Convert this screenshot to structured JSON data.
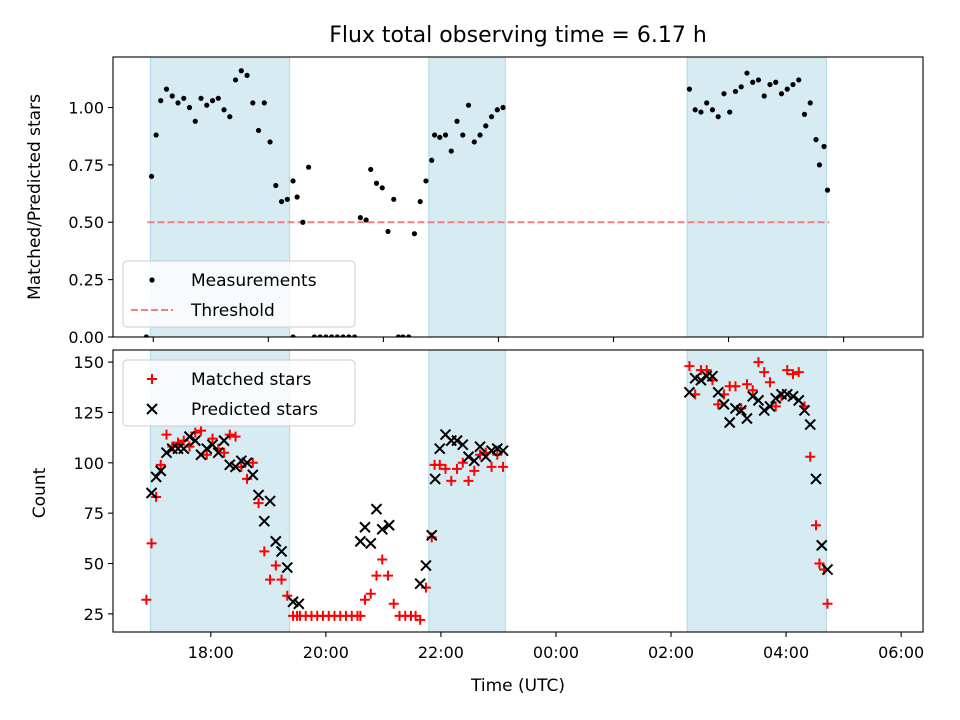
{
  "chart_data": [
    {
      "type": "scatter",
      "title": "Flux total observing time = 6.17 h",
      "ylabel": "Matched/Predicted stars",
      "xlabel": "",
      "x_unit": "hours since 17:00 UTC",
      "xlim": [
        -0.7,
        13.38
      ],
      "ylim": [
        0,
        1.22
      ],
      "yticks": [
        0.0,
        0.25,
        0.5,
        0.75,
        1.0
      ],
      "ytick_labels": [
        "0.00",
        "0.25",
        "0.50",
        "0.75",
        "1.00"
      ],
      "xticks": [
        0,
        2,
        4,
        6,
        8,
        10,
        12
      ],
      "shaded_intervals": [
        [
          -0.05,
          2.37
        ],
        [
          4.79,
          6.12
        ],
        [
          9.28,
          11.7
        ]
      ],
      "legend": {
        "position": "lower-left",
        "entries": [
          "Measurements",
          "Threshold"
        ]
      },
      "threshold": {
        "name": "Threshold",
        "value": 0.5,
        "x_range": [
          -0.1,
          11.75
        ],
        "color": "#f08080"
      },
      "series": [
        {
          "name": "Measurements",
          "color": "#000000",
          "x": [
            -0.12,
            -0.03,
            0.05,
            0.13,
            0.23,
            0.33,
            0.43,
            0.53,
            0.63,
            0.73,
            0.83,
            0.93,
            1.03,
            1.13,
            1.23,
            1.33,
            1.43,
            1.53,
            1.63,
            1.73,
            1.83,
            1.93,
            2.03,
            2.13,
            2.23,
            2.33,
            2.43,
            2.43,
            2.5,
            2.6,
            2.7,
            2.8,
            2.9,
            3.0,
            3.1,
            3.2,
            3.3,
            3.4,
            3.5,
            3.6,
            3.7,
            3.78,
            3.88,
            3.98,
            4.08,
            4.18,
            4.26,
            4.34,
            4.44,
            4.54,
            4.64,
            4.74,
            4.84,
            4.89,
            4.98,
            5.08,
            5.18,
            5.28,
            5.38,
            5.48,
            5.58,
            5.68,
            5.78,
            5.88,
            5.98,
            6.08,
            9.32,
            9.42,
            9.52,
            9.62,
            9.72,
            9.82,
            9.92,
            10.02,
            10.12,
            10.22,
            10.32,
            10.42,
            10.52,
            10.62,
            10.72,
            10.82,
            10.92,
            11.02,
            11.12,
            11.22,
            11.32,
            11.42,
            11.52,
            11.58,
            11.66,
            11.72
          ],
          "y": [
            0.0,
            0.7,
            0.88,
            1.03,
            1.08,
            1.05,
            1.02,
            1.04,
            1.0,
            0.94,
            1.04,
            1.01,
            1.03,
            1.04,
            0.99,
            0.96,
            1.12,
            1.16,
            1.14,
            1.02,
            0.9,
            1.02,
            0.85,
            0.66,
            0.59,
            0.6,
            0.68,
            0.0,
            0.61,
            0.5,
            0.74,
            0.0,
            0.0,
            0.0,
            0.0,
            0.0,
            0.0,
            0.0,
            0.0,
            0.52,
            0.51,
            0.73,
            0.67,
            0.65,
            0.46,
            0.6,
            0.0,
            0.0,
            0.0,
            0.45,
            0.59,
            0.68,
            0.77,
            0.88,
            0.87,
            0.88,
            0.81,
            0.94,
            0.88,
            1.01,
            0.85,
            0.88,
            0.92,
            0.96,
            0.99,
            1.0,
            1.08,
            0.99,
            0.98,
            1.02,
            0.99,
            0.96,
            1.06,
            0.98,
            1.07,
            1.09,
            1.15,
            1.11,
            1.12,
            1.05,
            1.1,
            1.11,
            1.06,
            1.08,
            1.1,
            1.12,
            0.97,
            1.02,
            0.86,
            0.75,
            0.83,
            0.64
          ]
        }
      ]
    },
    {
      "type": "scatter",
      "title": "",
      "ylabel": "Count",
      "xlabel": "Time (UTC)",
      "x_unit": "hours since 17:00 UTC",
      "xlim": [
        -0.7,
        13.38
      ],
      "ylim": [
        16,
        156
      ],
      "yticks": [
        25,
        50,
        75,
        100,
        125,
        150
      ],
      "ytick_labels": [
        "25",
        "50",
        "75",
        "100",
        "125",
        "150"
      ],
      "xticks": [
        1,
        3,
        5,
        7,
        9,
        11,
        13
      ],
      "xtick_labels": [
        "18:00",
        "20:00",
        "22:00",
        "00:00",
        "02:00",
        "04:00",
        "06:00"
      ],
      "shaded_intervals": [
        [
          -0.05,
          2.37
        ],
        [
          4.79,
          6.12
        ],
        [
          9.28,
          11.7
        ]
      ],
      "legend": {
        "position": "upper-left",
        "entries": [
          "Matched stars",
          "Predicted stars"
        ]
      },
      "series": [
        {
          "name": "Matched stars",
          "marker": "plus",
          "color": "#ff0000",
          "x": [
            -0.12,
            -0.03,
            0.05,
            0.13,
            0.23,
            0.33,
            0.43,
            0.53,
            0.63,
            0.73,
            0.83,
            0.93,
            1.03,
            1.13,
            1.23,
            1.33,
            1.43,
            1.53,
            1.63,
            1.73,
            1.83,
            1.93,
            2.03,
            2.13,
            2.23,
            2.33,
            2.43,
            2.5,
            2.55,
            2.65,
            2.75,
            2.85,
            2.95,
            3.05,
            3.15,
            3.25,
            3.35,
            3.45,
            3.55,
            3.6,
            3.68,
            3.78,
            3.88,
            3.98,
            4.08,
            4.18,
            4.28,
            4.38,
            4.48,
            4.56,
            4.64,
            4.74,
            4.84,
            4.89,
            4.98,
            5.08,
            5.18,
            5.28,
            5.38,
            5.48,
            5.58,
            5.68,
            5.78,
            5.88,
            5.98,
            6.08,
            9.32,
            9.42,
            9.52,
            9.62,
            9.72,
            9.82,
            9.92,
            10.02,
            10.12,
            10.22,
            10.32,
            10.42,
            10.52,
            10.62,
            10.72,
            10.82,
            10.92,
            11.02,
            11.12,
            11.22,
            11.32,
            11.42,
            11.52,
            11.58,
            11.66,
            11.72
          ],
          "y": [
            32,
            60,
            83,
            99,
            114,
            108,
            110,
            111,
            108,
            115,
            116,
            104,
            112,
            107,
            105,
            114,
            113,
            98,
            92,
            100,
            80,
            56,
            42,
            49,
            42,
            34,
            24,
            24,
            24,
            24,
            24,
            24,
            24,
            24,
            24,
            24,
            24,
            24,
            24,
            24,
            32,
            35,
            44,
            52,
            44,
            30,
            24,
            24,
            24,
            24,
            22,
            38,
            63,
            99,
            99,
            97,
            91,
            97,
            100,
            91,
            96,
            104,
            105,
            98,
            104,
            98,
            148,
            134,
            146,
            146,
            141,
            129,
            134,
            138,
            138,
            127,
            139,
            136,
            150,
            145,
            140,
            128,
            133,
            146,
            144,
            145,
            128,
            103,
            69,
            50,
            47,
            30
          ]
        },
        {
          "name": "Predicted stars",
          "marker": "x",
          "color": "#000000",
          "x": [
            -0.03,
            0.05,
            0.13,
            0.23,
            0.33,
            0.43,
            0.53,
            0.63,
            0.73,
            0.83,
            0.93,
            1.03,
            1.13,
            1.23,
            1.33,
            1.43,
            1.53,
            1.63,
            1.73,
            1.83,
            1.93,
            2.03,
            2.13,
            2.23,
            2.33,
            2.43,
            2.53,
            3.6,
            3.68,
            3.78,
            3.88,
            3.98,
            4.1,
            4.64,
            4.74,
            4.84,
            4.9,
            4.98,
            5.08,
            5.18,
            5.28,
            5.38,
            5.48,
            5.58,
            5.68,
            5.78,
            5.88,
            5.98,
            6.08,
            9.32,
            9.42,
            9.52,
            9.62,
            9.72,
            9.82,
            9.92,
            10.02,
            10.12,
            10.22,
            10.32,
            10.42,
            10.52,
            10.62,
            10.72,
            10.82,
            10.92,
            11.02,
            11.12,
            11.22,
            11.32,
            11.42,
            11.52,
            11.62,
            11.72
          ],
          "y": [
            85,
            93,
            96,
            105,
            107,
            107,
            107,
            113,
            111,
            104,
            107,
            109,
            105,
            111,
            99,
            98,
            101,
            100,
            94,
            84,
            71,
            81,
            61,
            56,
            48,
            31,
            30,
            61,
            68,
            60,
            77,
            67,
            69,
            40,
            49,
            64,
            92,
            107,
            114,
            111,
            111,
            109,
            103,
            101,
            108,
            103,
            106,
            107,
            106,
            135,
            142,
            141,
            143,
            143,
            135,
            129,
            120,
            127,
            126,
            122,
            133,
            131,
            126,
            128,
            132,
            134,
            134,
            133,
            131,
            126,
            119,
            92,
            59,
            47
          ]
        }
      ]
    }
  ]
}
